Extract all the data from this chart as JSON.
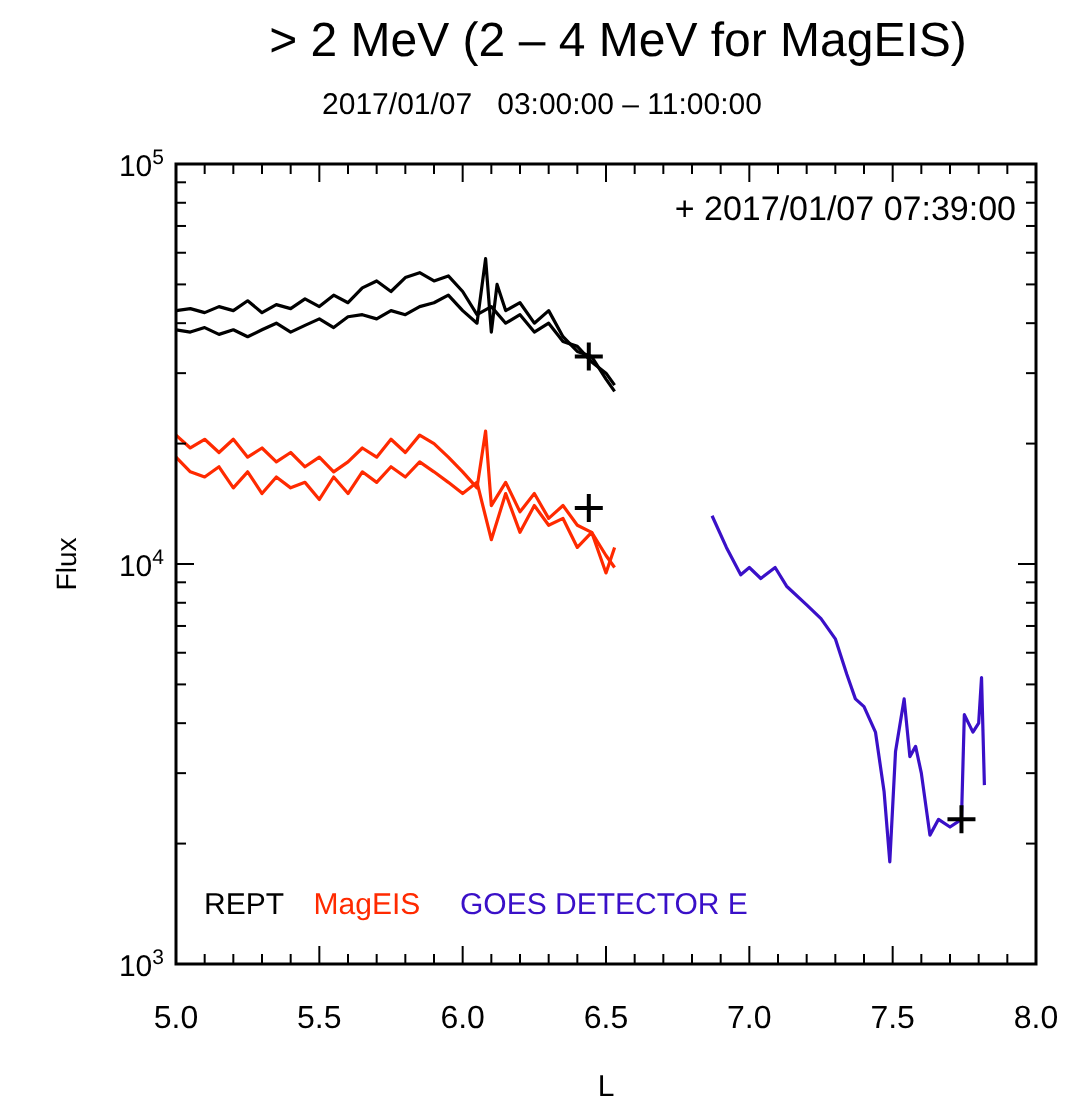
{
  "chart_data": {
    "type": "line",
    "title": "> 2 MeV (2 – 4 MeV for MagEIS)",
    "subtitle": "2017/01/07   03:00:00 – 11:00:00",
    "xlabel": "L",
    "ylabel": "Flux",
    "log": "y",
    "legend": "bottom left",
    "xlim": [
      5.0,
      8.0
    ],
    "ylim": [
      1000,
      100000
    ],
    "xticks": [
      {
        "value": 5.0,
        "label": "5.0"
      },
      {
        "value": 5.1,
        "label": null
      },
      {
        "value": 5.2,
        "label": null
      },
      {
        "value": 5.3,
        "label": null
      },
      {
        "value": 5.4,
        "label": null
      },
      {
        "value": 5.5,
        "label": "5.5"
      },
      {
        "value": 5.6,
        "label": null
      },
      {
        "value": 5.7,
        "label": null
      },
      {
        "value": 5.8,
        "label": null
      },
      {
        "value": 5.9,
        "label": null
      },
      {
        "value": 6.0,
        "label": "6.0"
      },
      {
        "value": 6.1,
        "label": null
      },
      {
        "value": 6.2,
        "label": null
      },
      {
        "value": 6.3,
        "label": null
      },
      {
        "value": 6.4,
        "label": null
      },
      {
        "value": 6.5,
        "label": "6.5"
      },
      {
        "value": 6.6,
        "label": null
      },
      {
        "value": 6.7,
        "label": null
      },
      {
        "value": 6.8,
        "label": null
      },
      {
        "value": 6.9,
        "label": null
      },
      {
        "value": 7.0,
        "label": "7.0"
      },
      {
        "value": 7.1,
        "label": null
      },
      {
        "value": 7.2,
        "label": null
      },
      {
        "value": 7.3,
        "label": null
      },
      {
        "value": 7.4,
        "label": null
      },
      {
        "value": 7.5,
        "label": "7.5"
      },
      {
        "value": 7.6,
        "label": null
      },
      {
        "value": 7.7,
        "label": null
      },
      {
        "value": 7.8,
        "label": null
      },
      {
        "value": 7.9,
        "label": null
      },
      {
        "value": 8.0,
        "label": "8.0"
      }
    ],
    "yticks": [
      {
        "value": 1000,
        "label": "10$^{3}$"
      },
      {
        "value": 2000,
        "label": null
      },
      {
        "value": 3000,
        "label": null
      },
      {
        "value": 4000,
        "label": null
      },
      {
        "value": 5000,
        "label": null
      },
      {
        "value": 6000,
        "label": null
      },
      {
        "value": 7000,
        "label": null
      },
      {
        "value": 8000,
        "label": null
      },
      {
        "value": 9000,
        "label": null
      },
      {
        "value": 10000,
        "label": "10$^{4}$"
      },
      {
        "value": 20000,
        "label": null
      },
      {
        "value": 30000,
        "label": null
      },
      {
        "value": 40000,
        "label": null
      },
      {
        "value": 50000,
        "label": null
      },
      {
        "value": 60000,
        "label": null
      },
      {
        "value": 70000,
        "label": null
      },
      {
        "value": 80000,
        "label": null
      },
      {
        "value": 90000,
        "label": null
      },
      {
        "value": 100000,
        "label": "10$^{5}$"
      }
    ],
    "annotations": [
      "+ 2017/01/07 07:39:00"
    ],
    "series": [
      {
        "name": "REPT",
        "color": "#000000",
        "x": [
          5.0,
          5.05,
          5.1,
          5.15,
          5.2,
          5.25,
          5.3,
          5.35,
          5.4,
          5.45,
          5.5,
          5.55,
          5.6,
          5.65,
          5.7,
          5.75,
          5.8,
          5.85,
          5.9,
          5.95,
          6.0,
          6.05,
          6.1,
          6.15,
          6.2,
          6.25,
          6.3,
          6.35,
          6.4,
          6.45,
          6.5,
          6.53
        ],
        "values": [
          43000,
          43500,
          42500,
          44000,
          43000,
          45500,
          42500,
          44500,
          43500,
          46000,
          44000,
          47000,
          45000,
          49000,
          51000,
          48000,
          52000,
          53500,
          51000,
          52500,
          48000,
          42000,
          44000,
          40000,
          42000,
          38000,
          40000,
          36000,
          35000,
          32000,
          30000,
          28000
        ]
      },
      {
        "color": "#000000",
        "x": [
          5.0,
          5.05,
          5.1,
          5.15,
          5.2,
          5.25,
          5.3,
          5.35,
          5.4,
          5.45,
          5.5,
          5.55,
          5.6,
          5.65,
          5.7,
          5.75,
          5.8,
          5.85,
          5.9,
          5.95,
          6.0,
          6.05,
          6.08,
          6.1,
          6.12,
          6.15,
          6.2,
          6.25,
          6.3,
          6.35,
          6.4,
          6.45,
          6.5,
          6.53
        ],
        "values": [
          38500,
          38000,
          39000,
          37500,
          38500,
          37000,
          38500,
          40000,
          38000,
          39500,
          41000,
          39000,
          41500,
          42000,
          41000,
          43000,
          42000,
          44000,
          45000,
          47000,
          43000,
          40000,
          58000,
          38000,
          50000,
          43000,
          45000,
          40000,
          43000,
          37000,
          34000,
          33000,
          29000,
          27000
        ]
      },
      {
        "name": "MagEIS",
        "color": "#ff2a00",
        "x": [
          5.0,
          5.05,
          5.1,
          5.15,
          5.2,
          5.25,
          5.3,
          5.35,
          5.4,
          5.45,
          5.5,
          5.55,
          5.6,
          5.65,
          5.7,
          5.75,
          5.8,
          5.85,
          5.9,
          5.95,
          6.0,
          6.05,
          6.08,
          6.1,
          6.15,
          6.2,
          6.25,
          6.3,
          6.35,
          6.4,
          6.45,
          6.5,
          6.53
        ],
        "values": [
          21000,
          19500,
          20500,
          19000,
          20500,
          18500,
          19500,
          18000,
          19000,
          17500,
          18500,
          17000,
          18000,
          19500,
          18500,
          20500,
          19000,
          21000,
          20000,
          18500,
          17000,
          15500,
          21500,
          14000,
          16000,
          13500,
          15000,
          13000,
          14000,
          12500,
          12000,
          10500,
          9800
        ]
      },
      {
        "color": "#ff2a00",
        "x": [
          5.0,
          5.05,
          5.1,
          5.15,
          5.2,
          5.25,
          5.3,
          5.35,
          5.4,
          5.45,
          5.5,
          5.55,
          5.6,
          5.65,
          5.7,
          5.75,
          5.8,
          5.85,
          5.9,
          5.95,
          6.0,
          6.05,
          6.1,
          6.15,
          6.2,
          6.25,
          6.3,
          6.35,
          6.4,
          6.45,
          6.5,
          6.53
        ],
        "values": [
          18500,
          17000,
          16500,
          17500,
          15500,
          17000,
          15000,
          16500,
          15500,
          16000,
          14500,
          16500,
          15000,
          17000,
          16000,
          17500,
          16500,
          18000,
          17000,
          16000,
          15000,
          16000,
          11500,
          15000,
          12000,
          14000,
          12500,
          13000,
          11000,
          12000,
          9500,
          11000
        ]
      },
      {
        "name": "GOES DETECTOR E",
        "color": "#3a10c8",
        "x": [
          6.87,
          6.92,
          6.97,
          7.0,
          7.04,
          7.09,
          7.13,
          7.2,
          7.25,
          7.3,
          7.34,
          7.37,
          7.4,
          7.44,
          7.47,
          7.49,
          7.51,
          7.54,
          7.56,
          7.58,
          7.6,
          7.63,
          7.66,
          7.7,
          7.74,
          7.75,
          7.78,
          7.8,
          7.81,
          7.82
        ],
        "values": [
          13200,
          11000,
          9400,
          9800,
          9200,
          9800,
          8800,
          7900,
          7300,
          6500,
          5300,
          4600,
          4400,
          3800,
          2700,
          1800,
          3400,
          4600,
          3300,
          3500,
          3000,
          2100,
          2300,
          2200,
          2300,
          4200,
          3800,
          4000,
          5200,
          2800
        ]
      },
      {
        "type": "scatter",
        "marker": "cross",
        "color": "#000000",
        "x": [
          6.44,
          6.44,
          7.74
        ],
        "values": [
          33000,
          13800,
          2300
        ]
      }
    ]
  }
}
